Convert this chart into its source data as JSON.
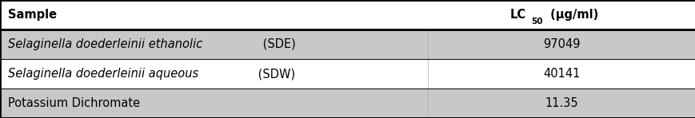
{
  "col1_header": "Sample",
  "col2_header_base": "LC",
  "col2_header_sub": "50",
  "col2_header_suffix": " (μg/ml)",
  "rows": [
    {
      "sample_italic": "Selaginella doederleinii ethanolic",
      "sample_normal": " (SDE)",
      "value": "97049",
      "shaded": true
    },
    {
      "sample_italic": "Selaginella doederleinii aqueous",
      "sample_normal": " (SDW)",
      "value": "40141",
      "shaded": false
    },
    {
      "sample_italic": "",
      "sample_normal": "Potassium Dichromate",
      "value": "11.35",
      "shaded": true
    }
  ],
  "header_bg": "#ffffff",
  "shaded_bg": "#c8c8c8",
  "unshaded_bg": "#ffffff",
  "border_color": "#000000",
  "text_color": "#000000",
  "header_fontsize": 10.5,
  "body_fontsize": 10.5,
  "col_split": 0.615,
  "outer_border_lw": 2.0,
  "inner_border_lw": 2.0,
  "row_border_lw": 0.7
}
